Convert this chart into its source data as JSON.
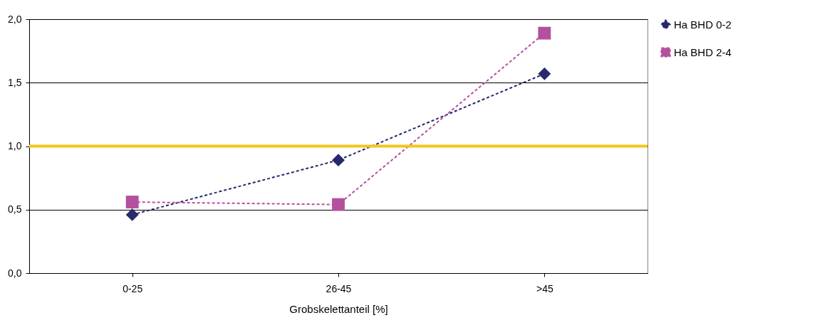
{
  "chart_data": {
    "type": "line",
    "xlabel": "Grobskelettanteil [%]",
    "categories": [
      "0-25",
      "26-45",
      ">45"
    ],
    "series": [
      {
        "name": "Ha BHD 0-2",
        "color": "#28286e",
        "marker": "diamond",
        "values": [
          0.46,
          0.89,
          1.57
        ]
      },
      {
        "name": "Ha BHD 2-4",
        "color": "#b4509e",
        "marker": "square",
        "values": [
          0.56,
          0.54,
          1.89
        ]
      }
    ],
    "ylim": [
      0,
      2
    ],
    "yticks": [
      {
        "value": 0,
        "label": "0,0"
      },
      {
        "value": 0.5,
        "label": "0,5"
      },
      {
        "value": 1,
        "label": "1,0"
      },
      {
        "value": 1.5,
        "label": "1,5"
      },
      {
        "value": 2,
        "label": "2,0"
      }
    ],
    "grid": "y",
    "legend": "right",
    "line_style": "dashed",
    "ref_lines": [
      {
        "axis": "y",
        "value": 1,
        "color": "#f5c518"
      }
    ]
  }
}
